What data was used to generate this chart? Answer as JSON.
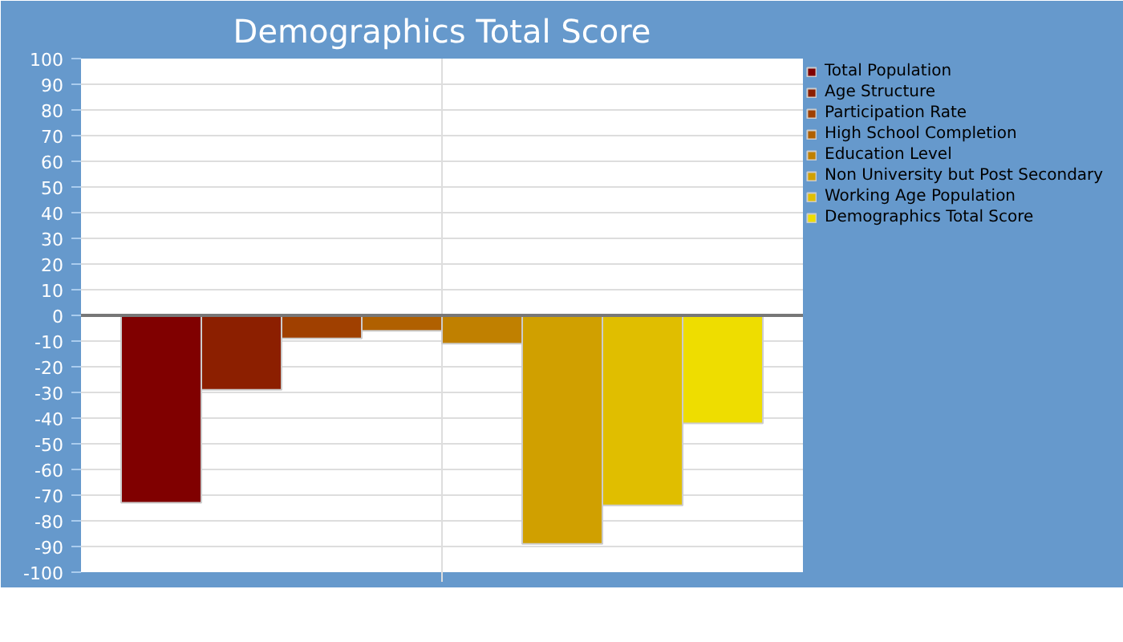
{
  "chart_data": {
    "type": "bar",
    "title": "Demographics Total Score",
    "categories": [
      null
    ],
    "series": [
      {
        "name": "Total Population",
        "color": "#800000",
        "values": [
          -73
        ]
      },
      {
        "name": "Age Structure",
        "color": "#8c1f00",
        "values": [
          -29
        ]
      },
      {
        "name": "Participation Rate",
        "color": "#a04000",
        "values": [
          -9
        ]
      },
      {
        "name": "High School Completion",
        "color": "#b06000",
        "values": [
          -6
        ]
      },
      {
        "name": "Education Level",
        "color": "#c08000",
        "values": [
          -11
        ]
      },
      {
        "name": "Non University but Post Secondary",
        "color": "#d0a000",
        "values": [
          -89
        ]
      },
      {
        "name": "Working Age Population",
        "color": "#e0be00",
        "values": [
          -74
        ]
      },
      {
        "name": "Demographics Total Score",
        "color": "#eedd00",
        "values": [
          -42
        ]
      }
    ],
    "ylim": [
      -100,
      100
    ],
    "yticks": [
      -100,
      -90,
      -80,
      -70,
      -60,
      -50,
      -40,
      -30,
      -20,
      -10,
      0,
      10,
      20,
      30,
      40,
      50,
      60,
      70,
      80,
      90,
      100
    ],
    "grid": true,
    "legend": "right"
  }
}
